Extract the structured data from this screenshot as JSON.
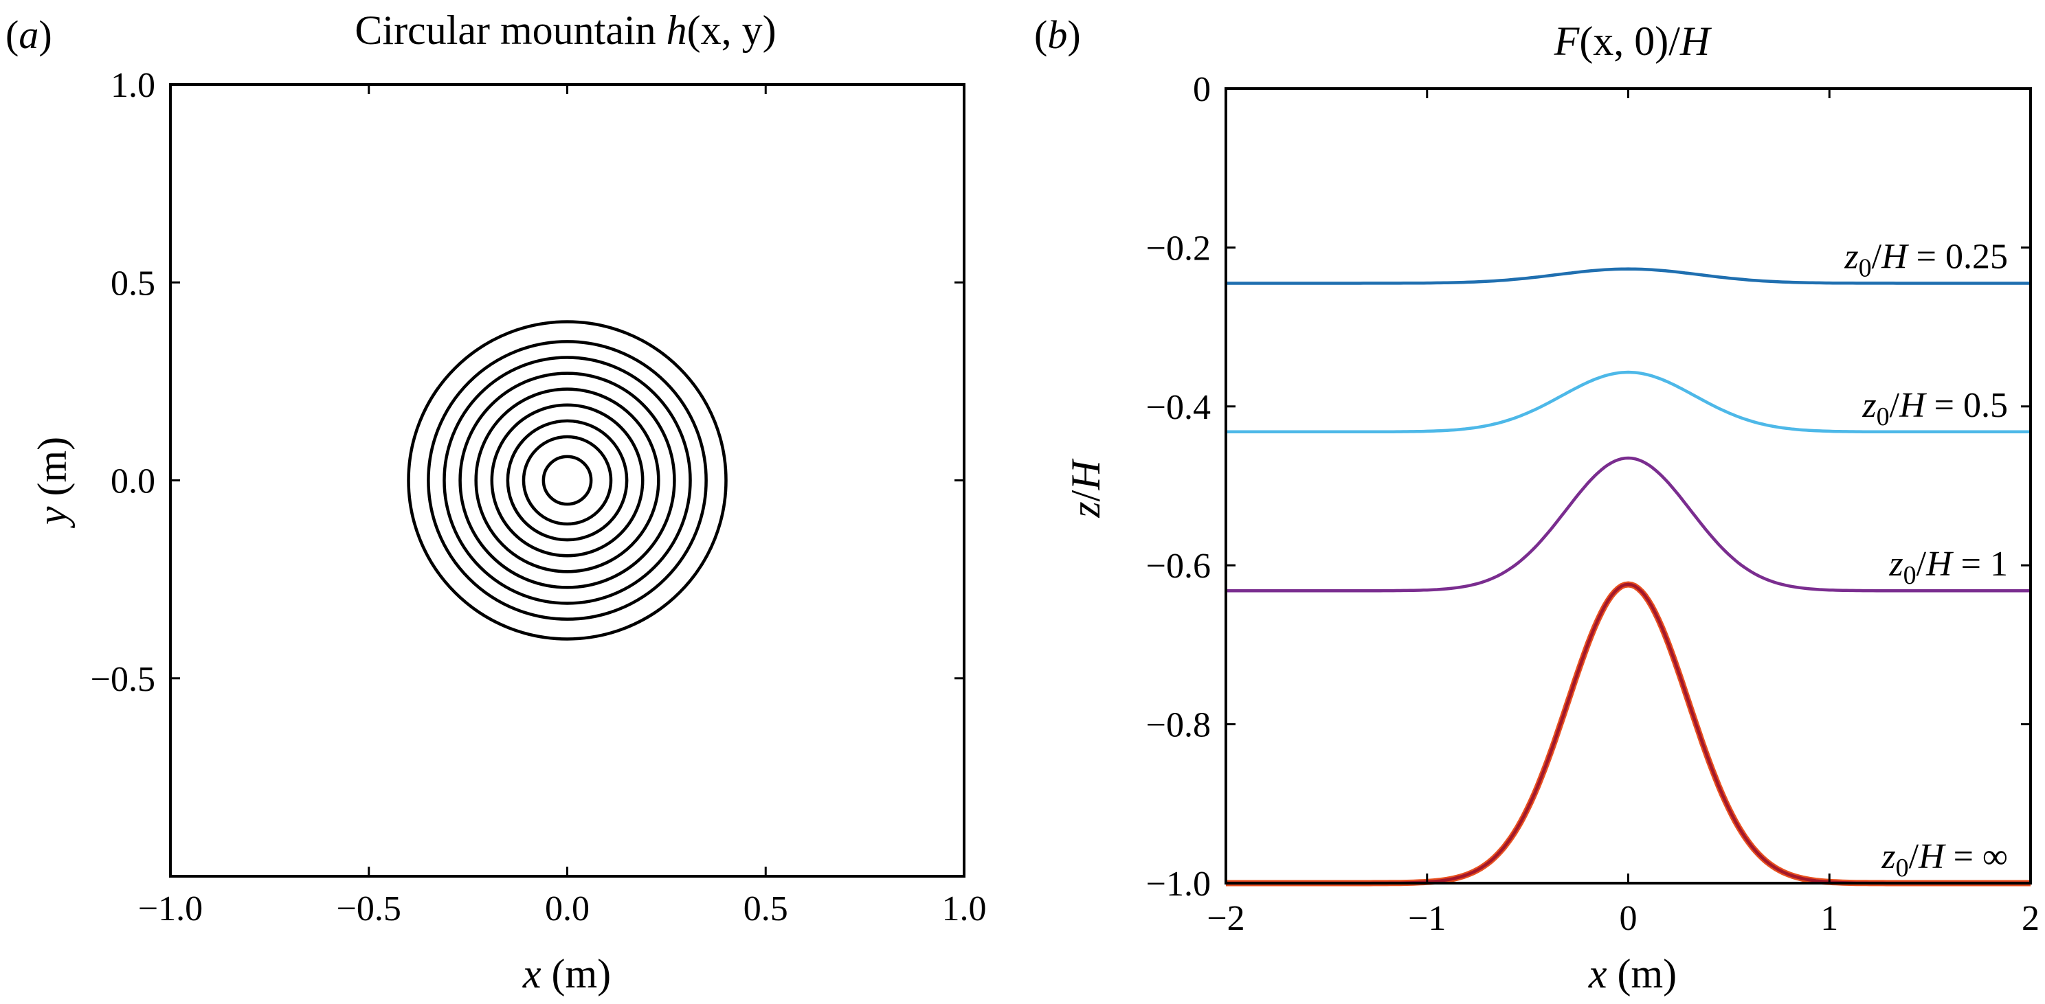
{
  "panels": {
    "a": {
      "label_open": "(",
      "label_letter": "a",
      "label_close": ")",
      "title_text": "Circular mountain ",
      "title_math": "h",
      "title_args": "(x, y)",
      "xlabel_var": "x",
      "xlabel_unit": " (m)",
      "ylabel_var": "y",
      "ylabel_unit": " (m)"
    },
    "b": {
      "label_open": "(",
      "label_letter": "b",
      "label_close": ")",
      "title_F": "F",
      "title_args": "(x, 0)",
      "title_slash": "/",
      "title_H": "H",
      "xlabel_var": "x",
      "xlabel_unit": " (m)",
      "ylabel_z": "z",
      "ylabel_slash": "/",
      "ylabel_H": "H"
    }
  },
  "chart_data": [
    {
      "type": "contour",
      "title": "Circular mountain h(x, y)",
      "xlabel": "x (m)",
      "ylabel": "y (m)",
      "xlim": [
        -1.0,
        1.0
      ],
      "ylim": [
        -1.0,
        1.0
      ],
      "xticks": [
        "−1.0",
        "−0.5",
        "0.0",
        "0.5",
        "1.0"
      ],
      "yticks": [
        "1.0",
        "0.5",
        "0.0",
        "−0.5"
      ],
      "ytick_values": [
        1.0,
        0.5,
        0.0,
        -0.5
      ],
      "xtick_values": [
        -1.0,
        -0.5,
        0.0,
        0.5,
        1.0
      ],
      "center": [
        0.0,
        0.0
      ],
      "contour_radii": [
        0.06,
        0.11,
        0.15,
        0.19,
        0.23,
        0.27,
        0.31,
        0.35,
        0.4
      ],
      "color": "#000000"
    },
    {
      "type": "line",
      "title": "F(x, 0)/H",
      "xlabel": "x (m)",
      "ylabel": "z/H",
      "xlim": [
        -2,
        2
      ],
      "ylim": [
        -1.0,
        0
      ],
      "xticks": [
        "−2",
        "−1",
        "0",
        "1",
        "2"
      ],
      "xtick_values": [
        -2,
        -1,
        0,
        1,
        2
      ],
      "yticks": [
        "0",
        "−0.2",
        "−0.4",
        "−0.6",
        "−0.8",
        "−1.0"
      ],
      "ytick_values": [
        0,
        -0.2,
        -0.4,
        -0.6,
        -0.8,
        -1.0
      ],
      "series": [
        {
          "name": "z0/H = 0.25",
          "label_var": "z",
          "label_sub": "0",
          "label_rest": "/H = 0.25",
          "baseline": -0.245,
          "peak": -0.227,
          "width": 0.35,
          "color": "#1f6fb0"
        },
        {
          "name": "z0/H = 0.5",
          "label_var": "z",
          "label_sub": "0",
          "label_rest": "/H = 0.5",
          "baseline": -0.432,
          "peak": -0.357,
          "width": 0.33,
          "color": "#4db8e8"
        },
        {
          "name": "z0/H = 1",
          "label_var": "z",
          "label_sub": "0",
          "label_rest": "/H = 1",
          "baseline": -0.632,
          "peak": -0.465,
          "width": 0.31,
          "color": "#7a2d8f"
        },
        {
          "name": "z0/H = ∞",
          "label_var": "z",
          "label_sub": "0",
          "label_rest": "/H = ∞",
          "baseline": -1.0,
          "peak": -0.624,
          "width": 0.3,
          "color": "#a3172a",
          "overlay_color": "#e8501f"
        }
      ]
    }
  ]
}
